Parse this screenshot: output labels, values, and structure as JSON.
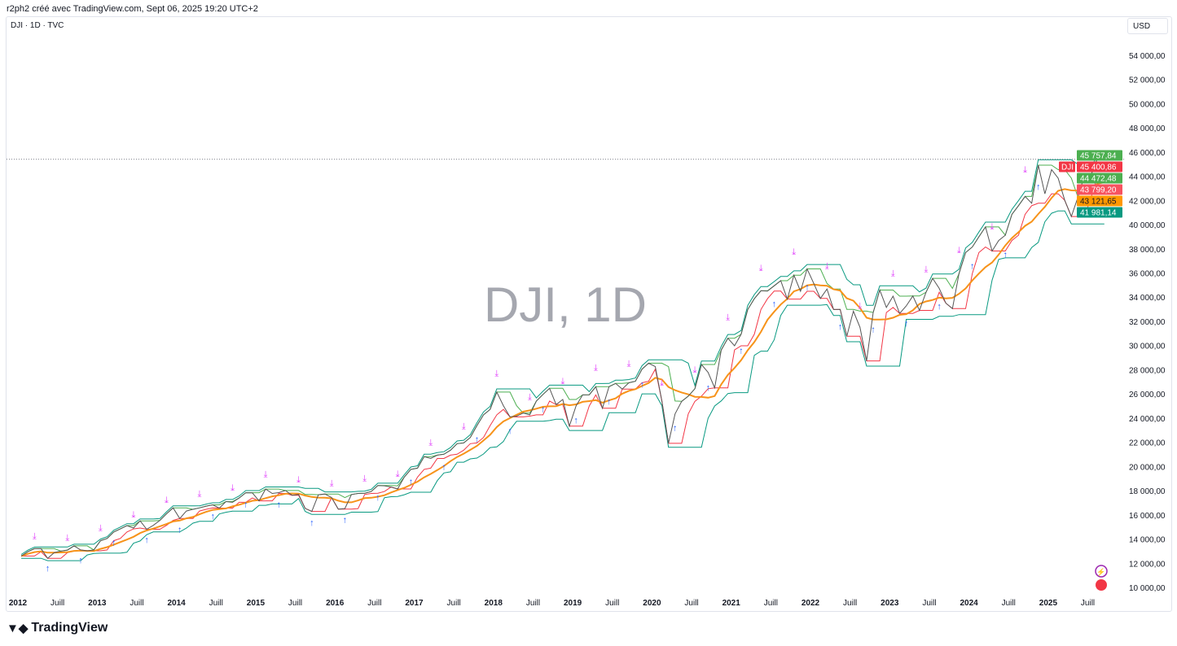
{
  "header": {
    "credit": "r2ph2 créé avec TradingView.com, Sept 06, 2025 19:20 UTC+2",
    "symbol_line": "DJI · 1D · TVC",
    "currency": "USD",
    "watermark": "DJI, 1D",
    "brand": "TradingView"
  },
  "colors": {
    "price": "#555555",
    "ma": "#f7931a",
    "upper": "#4caf50",
    "lower": "#f23645",
    "outer": "#089981",
    "marker_sell": "#e040fb",
    "marker_buy": "#2962ff"
  },
  "price_labels": [
    {
      "value": 45757.84,
      "text": "45 757,84",
      "color": "#4caf50"
    },
    {
      "value": 45400.86,
      "text": "45 400,86",
      "color": "#f23645",
      "tag": "DJI"
    },
    {
      "value": 44472.48,
      "text": "44 472,48",
      "color": "#4caf50"
    },
    {
      "value": 43799.2,
      "text": "43 799,20",
      "color": "#f7525f"
    },
    {
      "value": 43121.65,
      "text": "43 121,65",
      "color": "#ff9800"
    },
    {
      "value": 41981.14,
      "text": "41 981,14",
      "color": "#089981"
    }
  ],
  "chart_data": {
    "type": "line",
    "title": "DJI, 1D",
    "ylim": [
      9000,
      56000
    ],
    "yticks": [
      10000,
      12000,
      14000,
      16000,
      18000,
      20000,
      22000,
      24000,
      26000,
      28000,
      30000,
      32000,
      34000,
      36000,
      38000,
      40000,
      42000,
      44000,
      46000,
      48000,
      50000,
      52000,
      54000
    ],
    "ytick_labels": [
      "10 000,00",
      "12 000,00",
      "14 000,00",
      "16 000,00",
      "18 000,00",
      "20 000,00",
      "22 000,00",
      "24 000,00",
      "26 000,00",
      "28 000,00",
      "30 000,00",
      "32 000,00",
      "34 000,00",
      "36 000,00",
      "38 000,00",
      "40 000,00",
      "42 000,00",
      "44 000,00",
      "46 000,00",
      "48 000,00",
      "50 000,00",
      "52 000,00",
      "54 000,00"
    ],
    "xticks": [
      {
        "t": 2012,
        "label": "2012",
        "bold": true
      },
      {
        "t": 2012.5,
        "label": "Juill"
      },
      {
        "t": 2013,
        "label": "2013",
        "bold": true
      },
      {
        "t": 2013.5,
        "label": "Juill"
      },
      {
        "t": 2014,
        "label": "2014",
        "bold": true
      },
      {
        "t": 2014.5,
        "label": "Juill"
      },
      {
        "t": 2015,
        "label": "2015",
        "bold": true
      },
      {
        "t": 2015.5,
        "label": "Juill"
      },
      {
        "t": 2016,
        "label": "2016",
        "bold": true
      },
      {
        "t": 2016.5,
        "label": "Juill"
      },
      {
        "t": 2017,
        "label": "2017",
        "bold": true
      },
      {
        "t": 2017.5,
        "label": "Juill"
      },
      {
        "t": 2018,
        "label": "2018",
        "bold": true
      },
      {
        "t": 2018.5,
        "label": "Juill"
      },
      {
        "t": 2019,
        "label": "2019",
        "bold": true
      },
      {
        "t": 2019.5,
        "label": "Juill"
      },
      {
        "t": 2020,
        "label": "2020",
        "bold": true
      },
      {
        "t": 2020.5,
        "label": "Juill"
      },
      {
        "t": 2021,
        "label": "2021",
        "bold": true
      },
      {
        "t": 2021.5,
        "label": "Juill"
      },
      {
        "t": 2022,
        "label": "2022",
        "bold": true
      },
      {
        "t": 2022.5,
        "label": "Juill"
      },
      {
        "t": 2023,
        "label": "2023",
        "bold": true
      },
      {
        "t": 2023.5,
        "label": "Juill"
      },
      {
        "t": 2024,
        "label": "2024",
        "bold": true
      },
      {
        "t": 2024.5,
        "label": "Juill"
      },
      {
        "t": 2025,
        "label": "2025",
        "bold": true
      },
      {
        "t": 2025.5,
        "label": "Juill"
      }
    ],
    "start_year": 2012,
    "monthly_close": [
      12600,
      12950,
      13200,
      13210,
      12400,
      12880,
      13000,
      13090,
      13440,
      13100,
      13025,
      13100,
      13860,
      14050,
      14580,
      14840,
      15115,
      14910,
      15500,
      14810,
      15130,
      15545,
      16086,
      16577,
      15700,
      16320,
      16460,
      16580,
      16720,
      16830,
      16560,
      17100,
      17040,
      17390,
      17830,
      17820,
      17160,
      18130,
      17770,
      17840,
      18010,
      17620,
      17690,
      16530,
      16280,
      17660,
      17720,
      17425,
      16470,
      16516,
      17685,
      17770,
      17790,
      17930,
      18430,
      18400,
      18300,
      18140,
      19120,
      19760,
      19860,
      20810,
      20660,
      20940,
      21010,
      21350,
      21890,
      21950,
      22400,
      23380,
      24270,
      24720,
      26150,
      25030,
      24100,
      24160,
      24415,
      24270,
      25415,
      25960,
      26460,
      25115,
      25540,
      23330,
      24999,
      25916,
      25929,
      26593,
      24815,
      26600,
      26864,
      26403,
      26917,
      27046,
      28051,
      28538,
      28256,
      25409,
      21917,
      24346,
      25383,
      25813,
      26428,
      28430,
      27782,
      26502,
      29638,
      30606,
      29983,
      30932,
      32982,
      33875,
      34529,
      34503,
      34935,
      35361,
      33844,
      35820,
      34484,
      36338,
      35132,
      33893,
      34678,
      32977,
      32990,
      30775,
      32845,
      31510,
      28726,
      32733,
      34590,
      33147,
      34086,
      32657,
      33274,
      34098,
      32908,
      34408,
      35560,
      34722,
      33508,
      33053,
      35951,
      37690,
      38150,
      38996,
      39807,
      37816,
      38686,
      39119,
      40843,
      41563,
      42330,
      41763,
      44911,
      42544,
      44545,
      43841,
      42002,
      40669,
      42270,
      44095,
      44131,
      45545,
      45400
    ],
    "last_price": 45400.86
  }
}
